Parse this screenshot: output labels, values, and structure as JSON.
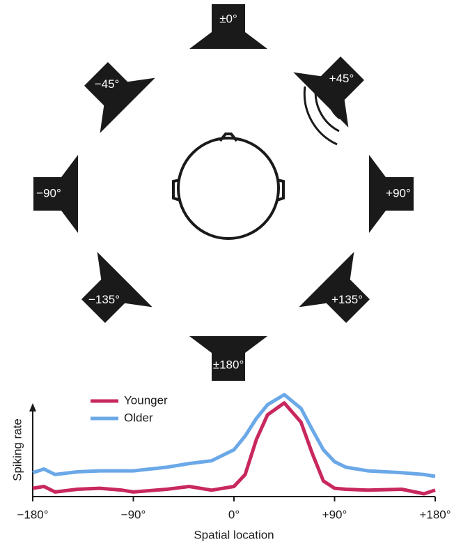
{
  "speakers": [
    "±0°",
    "+45°",
    "+90°",
    "+135°",
    "±180°",
    "−135°",
    "−90°",
    "−45°"
  ],
  "chart_data": {
    "type": "line",
    "x_label": "Spatial location",
    "y_label": "Spiking rate",
    "x": [
      -180,
      -170,
      -160,
      -140,
      -120,
      -100,
      -90,
      -60,
      -40,
      -20,
      0,
      10,
      20,
      30,
      45,
      60,
      70,
      80,
      90,
      100,
      120,
      150,
      170,
      180
    ],
    "series": [
      {
        "name": "Younger",
        "color": "#c8285f",
        "values": [
          9,
          11,
          5,
          8,
          9,
          7,
          5,
          8,
          11,
          7,
          11,
          24,
          62,
          89,
          102,
          81,
          47,
          17,
          9,
          8,
          7,
          8,
          3,
          7
        ]
      },
      {
        "name": "Older",
        "color": "#6aa8e8",
        "values": [
          26,
          30,
          24,
          27,
          28,
          28,
          28,
          32,
          36,
          39,
          51,
          66,
          85,
          100,
          111,
          96,
          73,
          51,
          38,
          32,
          28,
          26,
          24,
          22
        ]
      }
    ],
    "xlim": [
      -180,
      180
    ],
    "ylim": [
      0,
      120
    ],
    "xticks": [
      {
        "value": -180,
        "label": "−180°"
      },
      {
        "value": -90,
        "label": "−90°"
      },
      {
        "value": 0,
        "label": "0°"
      },
      {
        "value": 90,
        "label": "+90°"
      },
      {
        "value": 180,
        "label": "+180°"
      }
    ]
  }
}
